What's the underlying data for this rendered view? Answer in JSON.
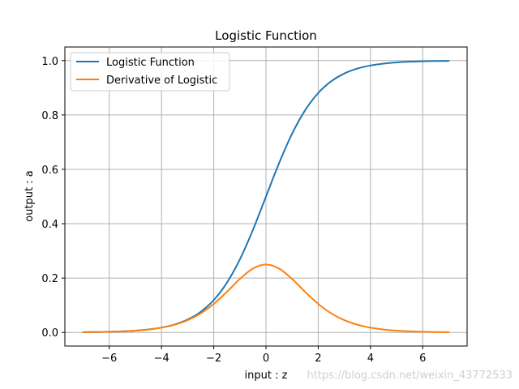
{
  "chart_data": {
    "type": "line",
    "title": "Logistic Function",
    "xlabel": "input : z",
    "ylabel": "output : a",
    "xlim": [
      -7.7,
      7.7
    ],
    "ylim": [
      -0.05,
      1.05
    ],
    "x_ticks": [
      -6,
      -4,
      -2,
      0,
      2,
      4,
      6
    ],
    "x_tick_labels": [
      "−6",
      "−4",
      "−2",
      "0",
      "2",
      "4",
      "6"
    ],
    "y_ticks": [
      0.0,
      0.2,
      0.4,
      0.6,
      0.8,
      1.0
    ],
    "y_tick_labels": [
      "0.0",
      "0.2",
      "0.4",
      "0.6",
      "0.8",
      "1.0"
    ],
    "grid": true,
    "legend_position": "top-left",
    "x": [
      -7,
      -6.5,
      -6,
      -5.5,
      -5,
      -4.5,
      -4,
      -3.5,
      -3,
      -2.5,
      -2,
      -1.5,
      -1,
      -0.5,
      0,
      0.5,
      1,
      1.5,
      2,
      2.5,
      3,
      3.5,
      4,
      4.5,
      5,
      5.5,
      6,
      6.5,
      7
    ],
    "series": [
      {
        "name": "Logistic Function",
        "color": "#1f77b4",
        "values": [
          0.0009,
          0.0015,
          0.0025,
          0.0041,
          0.0067,
          0.011,
          0.018,
          0.0293,
          0.0474,
          0.0759,
          0.1192,
          0.1824,
          0.2689,
          0.3775,
          0.5,
          0.6225,
          0.7311,
          0.8176,
          0.8808,
          0.9241,
          0.9526,
          0.9707,
          0.982,
          0.989,
          0.9933,
          0.9959,
          0.9975,
          0.9985,
          0.9991
        ]
      },
      {
        "name": "Derivative of Logistic",
        "color": "#ff7f0e",
        "values": [
          0.0009,
          0.0015,
          0.0025,
          0.0041,
          0.0066,
          0.0109,
          0.0177,
          0.0285,
          0.0452,
          0.0701,
          0.105,
          0.1491,
          0.1966,
          0.235,
          0.25,
          0.235,
          0.1966,
          0.1491,
          0.105,
          0.0701,
          0.0452,
          0.0285,
          0.0177,
          0.0109,
          0.0066,
          0.0041,
          0.0025,
          0.0015,
          0.0009
        ]
      }
    ]
  },
  "watermark": "https://blog.csdn.net/weixin_43772533"
}
